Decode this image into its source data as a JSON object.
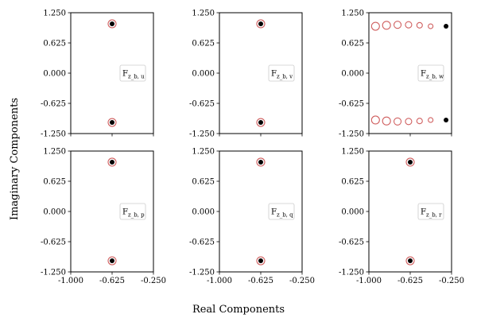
{
  "figure": {
    "ylabel": "Imaginary Components",
    "xlabel": "Real Components"
  },
  "chart_data": [
    {
      "type": "scatter",
      "legend_main": "F",
      "legend_sub": "z_b, u",
      "legend_placement": "center-right",
      "xlim": [
        -1.0,
        -0.25
      ],
      "ylim": [
        -1.25,
        1.25
      ],
      "xticks": [],
      "yticks": [
        "1.250",
        "0.625",
        "0.000",
        "-0.625",
        "-1.250"
      ],
      "series": [
        {
          "marker": "open-circle",
          "color": "#d06060",
          "points": [
            [
              -0.625,
              1.02
            ],
            [
              -0.625,
              -1.02
            ]
          ]
        },
        {
          "marker": "filled-dot",
          "color": "#000000",
          "points": [
            [
              -0.625,
              1.02
            ],
            [
              -0.625,
              -1.02
            ]
          ]
        }
      ]
    },
    {
      "type": "scatter",
      "legend_main": "F",
      "legend_sub": "z_b, v",
      "legend_placement": "center-right",
      "xlim": [
        -1.0,
        -0.25
      ],
      "ylim": [
        -1.25,
        1.25
      ],
      "xticks": [],
      "yticks": [
        "1.250",
        "0.625",
        "0.000",
        "-0.625",
        "-1.250"
      ],
      "series": [
        {
          "marker": "open-circle",
          "color": "#d06060",
          "points": [
            [
              -0.625,
              1.02
            ],
            [
              -0.625,
              -1.02
            ]
          ]
        },
        {
          "marker": "filled-dot",
          "color": "#000000",
          "points": [
            [
              -0.625,
              1.02
            ],
            [
              -0.625,
              -1.02
            ]
          ]
        }
      ]
    },
    {
      "type": "scatter",
      "legend_main": "F",
      "legend_sub": "z_b, w",
      "legend_placement": "center-right",
      "xlim": [
        -1.0,
        -0.25
      ],
      "ylim": [
        -1.25,
        1.25
      ],
      "xticks": [],
      "yticks": [
        "1.250",
        "0.625",
        "0.000",
        "-0.625",
        "-1.250"
      ],
      "series": [
        {
          "marker": "open-circle",
          "color": "#d06060",
          "points": [
            [
              -0.94,
              0.97
            ],
            [
              -0.84,
              0.99
            ],
            [
              -0.74,
              1.0
            ],
            [
              -0.64,
              1.0
            ],
            [
              -0.54,
              0.99
            ],
            [
              -0.44,
              0.97
            ],
            [
              -0.94,
              -0.97
            ],
            [
              -0.84,
              -0.99
            ],
            [
              -0.74,
              -1.0
            ],
            [
              -0.64,
              -1.0
            ],
            [
              -0.54,
              -0.99
            ],
            [
              -0.44,
              -0.97
            ]
          ],
          "sizes": [
            5,
            5,
            4.5,
            4,
            3.5,
            3,
            5,
            5,
            4.5,
            4,
            3.5,
            3
          ]
        },
        {
          "marker": "filled-dot",
          "color": "#000000",
          "points": [
            [
              -0.3,
              0.97
            ],
            [
              -0.3,
              -0.97
            ]
          ]
        }
      ]
    },
    {
      "type": "scatter",
      "legend_main": "F",
      "legend_sub": "z_b, p",
      "legend_placement": "center-right",
      "xlim": [
        -1.0,
        -0.25
      ],
      "ylim": [
        -1.25,
        1.25
      ],
      "xticks": [
        "-1.000",
        "-0.625",
        "-0.250"
      ],
      "yticks": [
        "1.250",
        "0.625",
        "0.000",
        "-0.625",
        "-1.250"
      ],
      "series": [
        {
          "marker": "open-circle",
          "color": "#d06060",
          "points": [
            [
              -0.625,
              1.02
            ],
            [
              -0.625,
              -1.02
            ]
          ]
        },
        {
          "marker": "filled-dot",
          "color": "#000000",
          "points": [
            [
              -0.625,
              1.02
            ],
            [
              -0.625,
              -1.02
            ]
          ]
        }
      ]
    },
    {
      "type": "scatter",
      "legend_main": "F",
      "legend_sub": "z_b, q",
      "legend_placement": "center-right",
      "xlim": [
        -1.0,
        -0.25
      ],
      "ylim": [
        -1.25,
        1.25
      ],
      "xticks": [
        "-1.000",
        "-0.625",
        "-0.250"
      ],
      "yticks": [
        "1.250",
        "0.625",
        "0.000",
        "-0.625",
        "-1.250"
      ],
      "series": [
        {
          "marker": "open-circle",
          "color": "#d06060",
          "points": [
            [
              -0.625,
              1.02
            ],
            [
              -0.625,
              -1.02
            ]
          ]
        },
        {
          "marker": "filled-dot",
          "color": "#000000",
          "points": [
            [
              -0.625,
              1.02
            ],
            [
              -0.625,
              -1.02
            ]
          ]
        }
      ]
    },
    {
      "type": "scatter",
      "legend_main": "F",
      "legend_sub": "z_b, r",
      "legend_placement": "center-right",
      "xlim": [
        -1.0,
        -0.25
      ],
      "ylim": [
        -1.25,
        1.25
      ],
      "xticks": [
        "-1.000",
        "-0.625",
        "-0.250"
      ],
      "yticks": [
        "1.250",
        "0.625",
        "0.000",
        "-0.625",
        "-1.250"
      ],
      "series": [
        {
          "marker": "open-circle",
          "color": "#d06060",
          "points": [
            [
              -0.625,
              1.02
            ],
            [
              -0.625,
              -1.02
            ]
          ]
        },
        {
          "marker": "filled-dot",
          "color": "#000000",
          "points": [
            [
              -0.625,
              1.02
            ],
            [
              -0.625,
              -1.02
            ]
          ]
        }
      ]
    }
  ]
}
